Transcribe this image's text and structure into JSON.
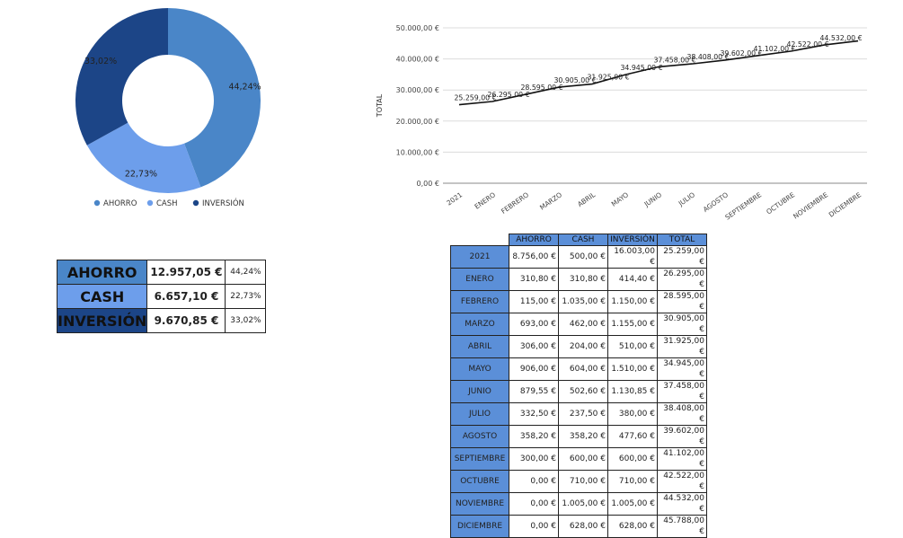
{
  "donut": {
    "slices": [
      {
        "name": "AHORRO",
        "percent": 44.24,
        "label": "44,24%",
        "color": "#4a86c8"
      },
      {
        "name": "CASH",
        "percent": 22.73,
        "label": "22,73%",
        "color": "#6d9eeb"
      },
      {
        "name": "INVERSIÓN",
        "percent": 33.02,
        "label": "33,02%",
        "color": "#1c4587"
      }
    ]
  },
  "chart_data": {
    "type": "line",
    "ylabel": "TOTAL",
    "ylim": [
      0,
      50000
    ],
    "yticks": [
      "0,00 €",
      "10.000,00 €",
      "20.000,00 €",
      "30.000,00 €",
      "40.000,00 €",
      "50.000,00 €"
    ],
    "categories": [
      "2021",
      "ENERO",
      "FEBRERO",
      "MARZO",
      "ABRIL",
      "MAYO",
      "JUNIO",
      "JULIO",
      "AGOSTO",
      "SEPTIEMBRE",
      "OCTUBRE",
      "NOVIEMBRE",
      "DICIEMBRE"
    ],
    "values": [
      25259,
      26295,
      28595,
      30905,
      31925,
      34945,
      37458,
      38408,
      39602,
      41102,
      42522,
      44532,
      45788
    ],
    "data_labels": [
      "25.259,00 €",
      "26.295,00 €",
      "28.595,00 €",
      "30.905,00 €",
      "31.925,00 €",
      "34.945,00 €",
      "37.458,00 €",
      "38.408,00 €",
      "39.602,00 €",
      "41.102,00 €",
      "42.522,00 €",
      "44.532,00 €",
      ""
    ],
    "grid": true
  },
  "summary": [
    {
      "label": "AHORRO",
      "value": "12.957,05 €",
      "pct": "44,24%",
      "color": "#4a86c8"
    },
    {
      "label": "CASH",
      "value": "6.657,10 €",
      "pct": "22,73%",
      "color": "#6d9eeb"
    },
    {
      "label": "INVERSIÓN",
      "value": "9.670,85 €",
      "pct": "33,02%",
      "color": "#1c4587"
    }
  ],
  "monthly": {
    "headers": [
      "AHORRO",
      "CASH",
      "INVERSIÓN",
      "TOTAL"
    ],
    "rows": [
      {
        "month": "2021",
        "cells": [
          "8.756,00 €",
          "500,00 €",
          "16.003,00 €",
          "25.259,00 €"
        ]
      },
      {
        "month": "ENERO",
        "cells": [
          "310,80 €",
          "310,80 €",
          "414,40 €",
          "26.295,00 €"
        ]
      },
      {
        "month": "FEBRERO",
        "cells": [
          "115,00 €",
          "1.035,00 €",
          "1.150,00 €",
          "28.595,00 €"
        ]
      },
      {
        "month": "MARZO",
        "cells": [
          "693,00 €",
          "462,00 €",
          "1.155,00 €",
          "30.905,00 €"
        ]
      },
      {
        "month": "ABRIL",
        "cells": [
          "306,00 €",
          "204,00 €",
          "510,00 €",
          "31.925,00 €"
        ]
      },
      {
        "month": "MAYO",
        "cells": [
          "906,00 €",
          "604,00 €",
          "1.510,00 €",
          "34.945,00 €"
        ]
      },
      {
        "month": "JUNIO",
        "cells": [
          "879,55 €",
          "502,60 €",
          "1.130,85 €",
          "37.458,00 €"
        ]
      },
      {
        "month": "JULIO",
        "cells": [
          "332,50 €",
          "237,50 €",
          "380,00 €",
          "38.408,00 €"
        ]
      },
      {
        "month": "AGOSTO",
        "cells": [
          "358,20 €",
          "358,20 €",
          "477,60 €",
          "39.602,00 €"
        ]
      },
      {
        "month": "SEPTIEMBRE",
        "cells": [
          "300,00 €",
          "600,00 €",
          "600,00 €",
          "41.102,00 €"
        ]
      },
      {
        "month": "OCTUBRE",
        "cells": [
          "0,00 €",
          "710,00 €",
          "710,00 €",
          "42.522,00 €"
        ]
      },
      {
        "month": "NOVIEMBRE",
        "cells": [
          "0,00 €",
          "1.005,00 €",
          "1.005,00 €",
          "44.532,00 €"
        ]
      },
      {
        "month": "DICIEMBRE",
        "cells": [
          "0,00 €",
          "628,00 €",
          "628,00 €",
          "45.788,00 €"
        ]
      }
    ]
  }
}
